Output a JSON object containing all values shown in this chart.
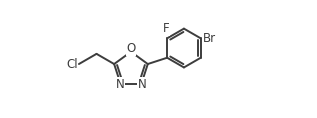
{
  "background": "#ffffff",
  "line_color": "#3d3d3d",
  "line_width": 1.4,
  "font_size": 8.5,
  "font_family": "DejaVu Sans",
  "text_color": "#3d3d3d",
  "figsize": [
    3.17,
    1.18
  ],
  "dpi": 100,
  "xlim": [
    0.0,
    1.55
  ],
  "ylim": [
    0.15,
    1.05
  ]
}
